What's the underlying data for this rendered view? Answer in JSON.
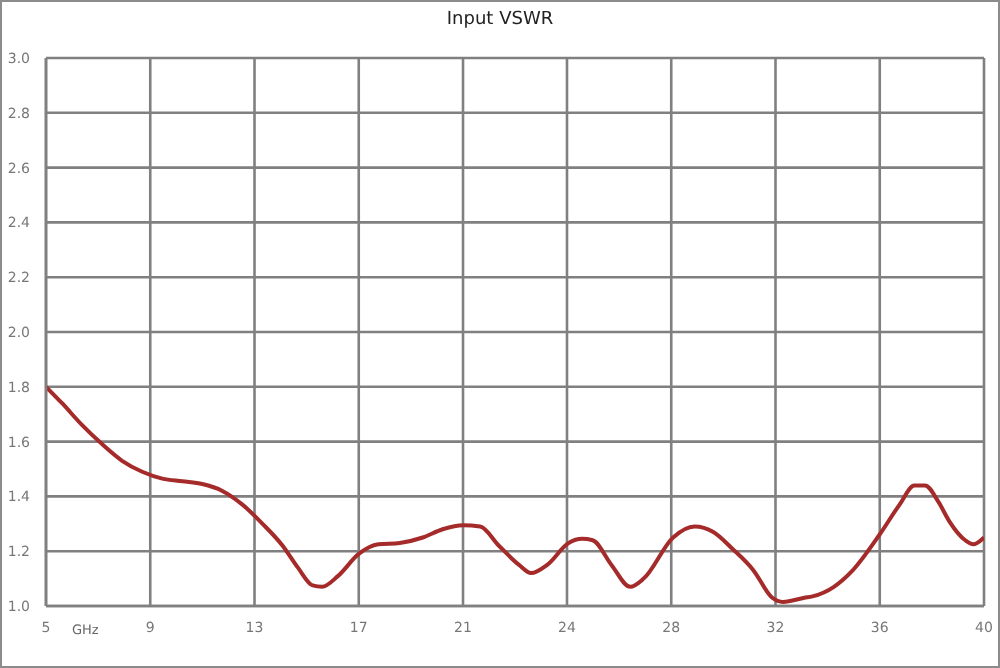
{
  "chart_data": {
    "type": "line",
    "title": "Input VSWR",
    "xlabel": "GHz",
    "x": [
      5,
      5.6,
      6.35,
      7.1,
      7.84,
      8.59,
      9.34,
      10.09,
      10.83,
      11.58,
      12.33,
      13.08,
      13.83,
      14.4,
      14.95,
      15.3,
      15.9,
      16.67,
      17.4,
      18.2,
      19.06,
      19.8,
      20.56,
      21.2,
      21.9,
      22.65,
      23.1,
      23.7,
      24.5,
      25,
      25.4,
      26.1,
      26.8,
      27.3,
      28.4,
      29.2,
      29.9,
      30.6,
      31.4,
      32.1,
      32.5,
      33.3,
      33.6,
      34.4,
      35.1,
      36.1,
      36.85,
      37.4,
      37.8,
      38.3,
      38.7,
      39.3,
      39.6,
      40
    ],
    "series": [
      {
        "color": "#a52a2a",
        "values": [
          1.8,
          1.74,
          1.66,
          1.59,
          1.53,
          1.49,
          1.465,
          1.455,
          1.445,
          1.42,
          1.37,
          1.3,
          1.22,
          1.14,
          1.075,
          1.07,
          1.11,
          1.19,
          1.225,
          1.23,
          1.25,
          1.28,
          1.295,
          1.29,
          1.22,
          1.15,
          1.12,
          1.15,
          1.23,
          1.245,
          1.24,
          1.15,
          1.07,
          1.1,
          1.25,
          1.29,
          1.27,
          1.21,
          1.13,
          1.03,
          1.015,
          1.03,
          1.035,
          1.07,
          1.13,
          1.26,
          1.37,
          1.44,
          1.44,
          1.38,
          1.31,
          1.24,
          1.225,
          1.25
        ]
      }
    ],
    "xlim": [
      5,
      40
    ],
    "xticks": [
      5,
      {
        "value": 8.89,
        "label": "9"
      },
      {
        "value": 12.78,
        "label": "13"
      },
      {
        "value": 16.67,
        "label": "17"
      },
      {
        "value": 20.56,
        "label": "21"
      },
      {
        "value": 24.44,
        "label": "24"
      },
      {
        "value": 28.33,
        "label": "28"
      },
      {
        "value": 32.22,
        "label": "32"
      },
      {
        "value": 36.11,
        "label": "36"
      },
      40
    ],
    "ylim": [
      1,
      3
    ],
    "yticks": [
      {
        "value": 1,
        "label": "1.0"
      },
      1.2,
      1.4,
      1.6,
      1.8,
      {
        "value": 2,
        "label": "2.0"
      },
      2.2,
      2.4,
      2.6,
      2.8,
      {
        "value": 3,
        "label": "3.0"
      }
    ],
    "grid": true,
    "legend": false,
    "marker": "none",
    "line_style": "solid"
  }
}
